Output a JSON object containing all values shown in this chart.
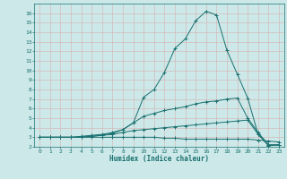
{
  "xlabel": "Humidex (Indice chaleur)",
  "background_color": "#cce8e8",
  "grid_color": "#aacccc",
  "line_color": "#1a7070",
  "xlim": [
    -0.5,
    23.5
  ],
  "ylim": [
    2,
    17
  ],
  "xticks": [
    0,
    1,
    2,
    3,
    4,
    5,
    6,
    7,
    8,
    9,
    10,
    11,
    12,
    13,
    14,
    15,
    16,
    17,
    18,
    19,
    20,
    21,
    22,
    23
  ],
  "yticks": [
    2,
    3,
    4,
    5,
    6,
    7,
    8,
    9,
    10,
    11,
    12,
    13,
    14,
    15,
    16
  ],
  "series": [
    [
      3.0,
      3.0,
      3.0,
      3.0,
      3.1,
      3.2,
      3.3,
      3.5,
      3.8,
      4.5,
      7.2,
      8.0,
      9.8,
      12.3,
      13.3,
      15.2,
      16.2,
      15.8,
      12.1,
      9.6,
      7.1,
      3.3,
      2.1,
      2.2
    ],
    [
      3.0,
      3.0,
      3.0,
      3.0,
      3.0,
      3.1,
      3.2,
      3.4,
      3.8,
      4.5,
      5.2,
      5.5,
      5.8,
      6.0,
      6.2,
      6.5,
      6.7,
      6.8,
      7.0,
      7.1,
      5.0,
      3.5,
      2.2,
      2.2
    ],
    [
      3.0,
      3.0,
      3.0,
      3.0,
      3.0,
      3.1,
      3.2,
      3.3,
      3.5,
      3.7,
      3.8,
      3.9,
      4.0,
      4.1,
      4.2,
      4.3,
      4.4,
      4.5,
      4.6,
      4.7,
      4.8,
      3.3,
      2.2,
      2.2
    ],
    [
      3.0,
      3.0,
      3.0,
      3.0,
      3.0,
      3.0,
      3.0,
      3.0,
      3.0,
      3.0,
      3.0,
      3.0,
      2.9,
      2.9,
      2.8,
      2.8,
      2.8,
      2.8,
      2.8,
      2.8,
      2.8,
      2.7,
      2.6,
      2.5
    ]
  ]
}
